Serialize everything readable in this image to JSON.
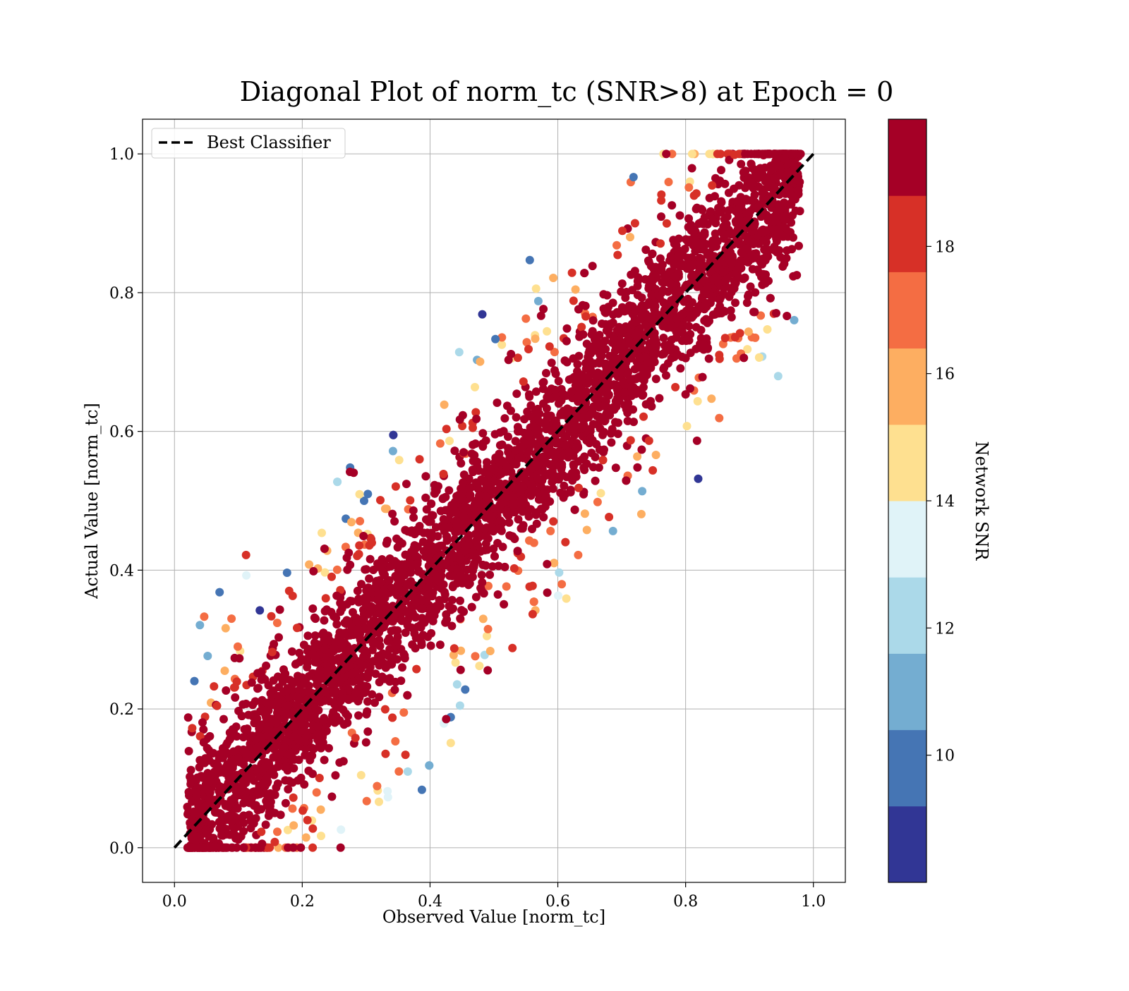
{
  "chart_data": {
    "type": "scatter",
    "title": "Diagonal Plot of norm_tc (SNR>8) at Epoch = 0",
    "xlabel": "Observed Value [norm_tc]",
    "ylabel": "Actual Value [norm_tc]",
    "xlim": [
      -0.05,
      1.05
    ],
    "ylim": [
      -0.05,
      1.05
    ],
    "xticks": [
      0.0,
      0.2,
      0.4,
      0.6,
      0.8,
      1.0
    ],
    "yticks": [
      0.0,
      0.2,
      0.4,
      0.6,
      0.8,
      1.0
    ],
    "xtick_labels": [
      "0.0",
      "0.2",
      "0.4",
      "0.6",
      "0.8",
      "1.0"
    ],
    "ytick_labels": [
      "0.0",
      "0.2",
      "0.4",
      "0.6",
      "0.8",
      "1.0"
    ],
    "grid": true,
    "legend": {
      "placement": "top-left",
      "entries": [
        "Best Classifier"
      ]
    },
    "reference_line": {
      "name": "Best Classifier",
      "x": [
        0.0,
        1.0
      ],
      "y": [
        0.0,
        1.0
      ],
      "style": "dashed",
      "color": "#000000"
    },
    "colorbar": {
      "label": "Network SNR",
      "min": 8,
      "max": 20,
      "ticks": [
        10,
        12,
        14,
        16,
        18
      ],
      "tick_labels": [
        "10",
        "12",
        "14",
        "16",
        "18"
      ],
      "colors": [
        "#313695",
        "#4575b4",
        "#74add1",
        "#abd9e9",
        "#e0f3f8",
        "#fee090",
        "#fdae61",
        "#f46d43",
        "#d73027",
        "#a50026"
      ]
    },
    "points_description_hidden": null
  }
}
